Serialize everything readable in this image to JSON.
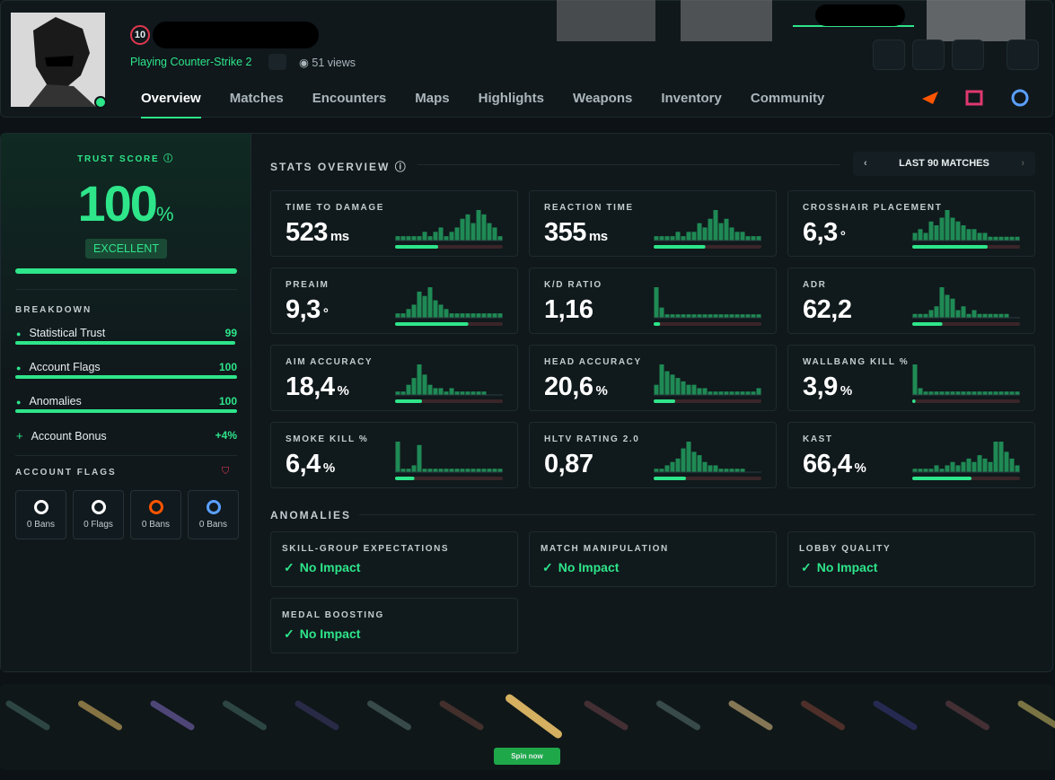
{
  "profile": {
    "level": "10",
    "status": "Playing Counter-Strike 2",
    "views": "51 views"
  },
  "nav": {
    "tabs": [
      "Overview",
      "Matches",
      "Encounters",
      "Maps",
      "Highlights",
      "Weapons",
      "Inventory",
      "Community"
    ]
  },
  "trust": {
    "title": "TRUST SCORE",
    "score": "100",
    "unit": "%",
    "rating": "EXCELLENT",
    "breakdown_title": "BREAKDOWN",
    "breakdown": [
      {
        "name": "Statistical Trust",
        "value": 99
      },
      {
        "name": "Account Flags",
        "value": 100
      },
      {
        "name": "Anomalies",
        "value": 100
      },
      {
        "name": "Account Bonus",
        "value": "+4%"
      }
    ],
    "flags_title": "ACCOUNT FLAGS",
    "flags": [
      "0 Bans",
      "0 Flags",
      "0 Bans",
      "0 Bans"
    ]
  },
  "stats": {
    "title": "STATS OVERVIEW",
    "range": "LAST 90 MATCHES",
    "cards": [
      {
        "label": "TIME TO DAMAGE",
        "value": "523",
        "unit": "ms",
        "fill": 40,
        "histogram": [
          1,
          1,
          1,
          1,
          1,
          2,
          1,
          2,
          3,
          1,
          2,
          3,
          5,
          6,
          4,
          7,
          6,
          4,
          3,
          1
        ]
      },
      {
        "label": "REACTION TIME",
        "value": "355",
        "unit": "ms",
        "fill": 48,
        "histogram": [
          1,
          1,
          1,
          1,
          2,
          1,
          2,
          2,
          4,
          3,
          5,
          7,
          4,
          5,
          3,
          2,
          2,
          1,
          1,
          1
        ]
      },
      {
        "label": "CROSSHAIR PLACEMENT",
        "value": "6,3",
        "unit": "°",
        "fill": 70,
        "histogram": [
          2,
          3,
          2,
          5,
          4,
          6,
          8,
          6,
          5,
          4,
          3,
          3,
          2,
          2,
          1,
          1,
          1,
          1,
          1,
          1
        ]
      },
      {
        "label": "PREAIM",
        "value": "9,3",
        "unit": "°",
        "fill": 68,
        "histogram": [
          1,
          1,
          2,
          3,
          6,
          5,
          7,
          4,
          3,
          2,
          1,
          1,
          1,
          1,
          1,
          1,
          1,
          1,
          1,
          1
        ]
      },
      {
        "label": "K/D RATIO",
        "value": "1,16",
        "fill": 6,
        "histogram": [
          9,
          3,
          1,
          1,
          1,
          1,
          1,
          1,
          1,
          1,
          1,
          1,
          1,
          1,
          1,
          1,
          1,
          1,
          1,
          1
        ]
      },
      {
        "label": "ADR",
        "value": "62,2",
        "fill": 28,
        "histogram": [
          1,
          1,
          1,
          2,
          3,
          8,
          6,
          5,
          2,
          3,
          1,
          2,
          1,
          1,
          1,
          1,
          1,
          1,
          0,
          0
        ]
      },
      {
        "label": "AIM ACCURACY",
        "value": "18,4",
        "unit": "%",
        "fill": 25,
        "histogram": [
          1,
          1,
          3,
          5,
          9,
          6,
          3,
          2,
          2,
          1,
          2,
          1,
          1,
          1,
          1,
          1,
          1,
          0,
          0,
          0
        ]
      },
      {
        "label": "HEAD ACCURACY",
        "value": "20,6",
        "unit": "%",
        "fill": 20,
        "histogram": [
          3,
          9,
          7,
          6,
          5,
          4,
          3,
          3,
          2,
          2,
          1,
          1,
          1,
          1,
          1,
          1,
          1,
          1,
          1,
          2
        ]
      },
      {
        "label": "WALLBANG KILL %",
        "value": "3,9",
        "unit": "%",
        "fill": 3,
        "histogram": [
          9,
          2,
          1,
          1,
          1,
          1,
          1,
          1,
          1,
          1,
          1,
          1,
          1,
          1,
          1,
          1,
          1,
          1,
          1,
          1
        ]
      },
      {
        "label": "SMOKE KILL %",
        "value": "6,4",
        "unit": "%",
        "fill": 18,
        "histogram": [
          9,
          1,
          1,
          2,
          8,
          1,
          1,
          1,
          1,
          1,
          1,
          1,
          1,
          1,
          1,
          1,
          1,
          1,
          1,
          1
        ]
      },
      {
        "label": "HLTV RATING 2.0",
        "value": "0,87",
        "fill": 30,
        "histogram": [
          1,
          1,
          2,
          3,
          4,
          7,
          9,
          6,
          5,
          3,
          2,
          2,
          1,
          1,
          1,
          1,
          1,
          0,
          0,
          0
        ]
      },
      {
        "label": "KAST",
        "value": "66,4",
        "unit": "%",
        "fill": 55,
        "histogram": [
          1,
          1,
          1,
          1,
          2,
          1,
          2,
          3,
          2,
          3,
          4,
          3,
          5,
          4,
          3,
          9,
          9,
          6,
          4,
          2
        ]
      }
    ]
  },
  "anomalies": {
    "title": "ANOMALIES",
    "cards": [
      {
        "label": "SKILL-GROUP EXPECTATIONS",
        "status": "No Impact"
      },
      {
        "label": "MATCH MANIPULATION",
        "status": "No Impact"
      },
      {
        "label": "LOBBY QUALITY",
        "status": "No Impact"
      },
      {
        "label": "MEDAL BOOSTING",
        "status": "No Impact"
      }
    ]
  },
  "spin": "Spin now"
}
